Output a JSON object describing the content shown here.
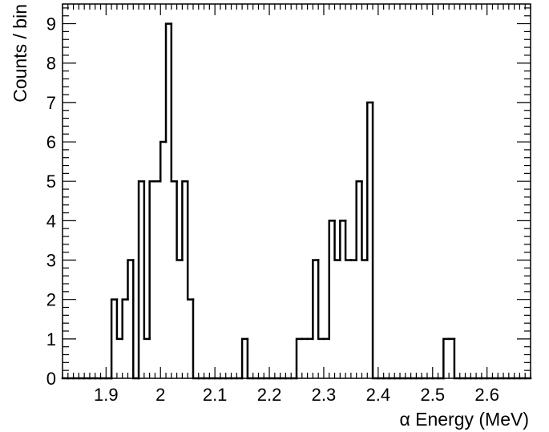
{
  "chart_data": {
    "type": "histogram",
    "title": "",
    "xlabel": "α Energy (MeV)",
    "ylabel": "Counts / bin",
    "xlim": [
      1.82,
      2.68
    ],
    "ylim": [
      0,
      9.5
    ],
    "x_ticks": [
      "1.9",
      "2",
      "2.1",
      "2.2",
      "2.3",
      "2.4",
      "2.5",
      "2.6"
    ],
    "y_ticks": [
      "0",
      "1",
      "2",
      "3",
      "4",
      "5",
      "6",
      "7",
      "8",
      "9"
    ],
    "bin_width": 0.01,
    "bin_edges_start": 1.82,
    "counts": [
      0,
      0,
      0,
      0,
      0,
      0,
      0,
      0,
      0,
      2,
      1,
      2,
      3,
      0,
      5,
      1,
      5,
      5,
      6,
      9,
      5,
      3,
      5,
      2,
      0,
      0,
      0,
      0,
      0,
      0,
      0,
      0,
      0,
      1,
      0,
      0,
      0,
      0,
      0,
      0,
      0,
      0,
      0,
      1,
      1,
      1,
      3,
      1,
      1,
      4,
      3,
      4,
      3,
      3,
      5,
      3,
      7,
      0,
      0,
      0,
      0,
      0,
      0,
      0,
      0,
      0,
      0,
      0,
      0,
      0,
      1,
      1,
      0,
      0,
      0,
      0,
      0,
      0,
      0,
      0,
      0,
      0,
      0,
      0,
      0,
      0
    ],
    "grid": false,
    "line_color": "#000000"
  }
}
